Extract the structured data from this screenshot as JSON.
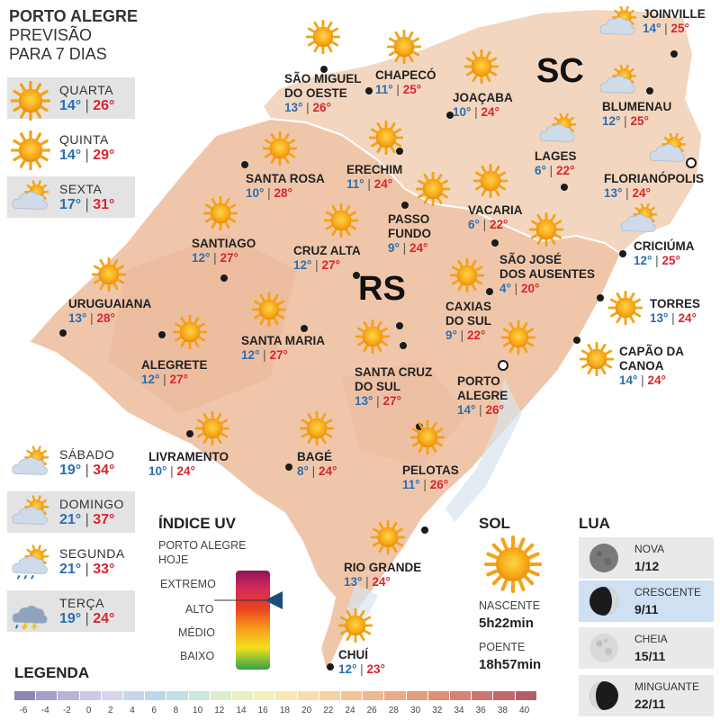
{
  "header": {
    "line1": "PORTO ALEGRE",
    "line2": "PREVISÃO",
    "line3": "PARA 7 DIAS"
  },
  "forecast": [
    {
      "day": "QUARTA",
      "min": "14°",
      "max": "26°",
      "icon": "sun-icon"
    },
    {
      "day": "QUINTA",
      "min": "14°",
      "max": "29°",
      "icon": "sun-icon"
    },
    {
      "day": "SEXTA",
      "min": "17°",
      "max": "31°",
      "icon": "partly-cloudy-icon"
    },
    {
      "day": "SÁBADO",
      "min": "19°",
      "max": "34°",
      "icon": "partly-cloudy-icon"
    },
    {
      "day": "DOMINGO",
      "min": "21°",
      "max": "37°",
      "icon": "partly-cloudy-icon"
    },
    {
      "day": "SEGUNDA",
      "min": "21°",
      "max": "33°",
      "icon": "sun-rain-icon"
    },
    {
      "day": "TERÇA",
      "min": "19°",
      "max": "24°",
      "icon": "storm-icon"
    }
  ],
  "states": {
    "sc": "SC",
    "rs": "RS"
  },
  "cities": [
    {
      "name": "SÃO MIGUEL",
      "name2": "DO OESTE",
      "min": "13°",
      "max": "26°",
      "icon": "sun-icon"
    },
    {
      "name": "CHAPECÓ",
      "min": "11°",
      "max": "25°",
      "icon": "sun-icon"
    },
    {
      "name": "JOAÇABA",
      "min": "10°",
      "max": "24°",
      "icon": "sun-icon"
    },
    {
      "name": "JOINVILLE",
      "min": "14°",
      "max": "25°",
      "icon": "partly-cloudy-icon"
    },
    {
      "name": "BLUMENAU",
      "min": "12°",
      "max": "25°",
      "icon": "partly-cloudy-icon"
    },
    {
      "name": "LAGES",
      "min": "6°",
      "max": "22°",
      "icon": "partly-cloudy-icon"
    },
    {
      "name": "FLORIANÓPOLIS",
      "min": "13°",
      "max": "24°",
      "icon": "partly-cloudy-icon"
    },
    {
      "name": "CRICIÚMA",
      "min": "12°",
      "max": "25°",
      "icon": "partly-cloudy-icon"
    },
    {
      "name": "SANTA ROSA",
      "min": "10°",
      "max": "28°",
      "icon": "sun-icon"
    },
    {
      "name": "ERECHIM",
      "min": "11°",
      "max": "24°",
      "icon": "sun-icon"
    },
    {
      "name": "VACARIA",
      "min": "6°",
      "max": "22°",
      "icon": "sun-icon"
    },
    {
      "name": "PASSO",
      "name2": "FUNDO",
      "min": "9°",
      "max": "24°",
      "icon": "sun-icon"
    },
    {
      "name": "SANTIAGO",
      "min": "12°",
      "max": "27°",
      "icon": "sun-icon"
    },
    {
      "name": "CRUZ ALTA",
      "min": "12°",
      "max": "27°",
      "icon": "sun-icon"
    },
    {
      "name": "SÃO JOSÉ",
      "name2": "DOS AUSENTES",
      "min": "4°",
      "max": "20°",
      "icon": "sun-icon"
    },
    {
      "name": "URUGUAIANA",
      "min": "13°",
      "max": "28°",
      "icon": "sun-icon"
    },
    {
      "name": "TORRES",
      "min": "13°",
      "max": "24°",
      "icon": "sun-icon"
    },
    {
      "name": "CAXIAS",
      "name2": "DO SUL",
      "min": "9°",
      "max": "22°",
      "icon": "sun-icon"
    },
    {
      "name": "SANTA MARIA",
      "min": "12°",
      "max": "27°",
      "icon": "sun-icon"
    },
    {
      "name": "ALEGRETE",
      "min": "12°",
      "max": "27°",
      "icon": "sun-icon"
    },
    {
      "name": "CAPÃO DA",
      "name2": "CANOA",
      "min": "14°",
      "max": "24°",
      "icon": "sun-icon"
    },
    {
      "name": "SANTA CRUZ",
      "name2": "DO SUL",
      "min": "13°",
      "max": "27°",
      "icon": "sun-icon"
    },
    {
      "name": "PORTO",
      "name2": "ALEGRE",
      "min": "14°",
      "max": "26°",
      "icon": "sun-icon"
    },
    {
      "name": "LIVRAMENTO",
      "min": "10°",
      "max": "24°",
      "icon": "sun-icon"
    },
    {
      "name": "BAGÉ",
      "min": "8°",
      "max": "24°",
      "icon": "sun-icon"
    },
    {
      "name": "PELOTAS",
      "min": "11°",
      "max": "26°",
      "icon": "sun-icon"
    },
    {
      "name": "RIO GRANDE",
      "min": "13°",
      "max": "24°",
      "icon": "sun-icon"
    },
    {
      "name": "CHUÍ",
      "min": "12°",
      "max": "23°",
      "icon": "sun-icon"
    }
  ],
  "uv": {
    "title": "ÍNDICE UV",
    "subtitle1": "PORTO ALEGRE",
    "subtitle2": "HOJE",
    "levels": [
      "EXTREMO",
      "ALTO",
      "MÉDIO",
      "BAIXO"
    ],
    "current_level": "ALTO",
    "current_fraction": 0.7,
    "colors": [
      "#b5176b",
      "#e23a2a",
      "#f6a21a",
      "#f4e21a",
      "#3aa84a"
    ]
  },
  "sun": {
    "title": "SOL",
    "sunrise_label": "NASCENTE",
    "sunrise": "5h22min",
    "sunset_label": "POENTE",
    "sunset": "18h57min"
  },
  "moon": {
    "title": "LUA",
    "phases": [
      {
        "name": "NOVA",
        "date": "1/12",
        "phase": "new"
      },
      {
        "name": "CRESCENTE",
        "date": "9/11",
        "phase": "waxing",
        "current": true
      },
      {
        "name": "CHEIA",
        "date": "15/11",
        "phase": "full"
      },
      {
        "name": "MINGUANTE",
        "date": "22/11",
        "phase": "waning"
      }
    ]
  },
  "legend": {
    "title": "LEGENDA",
    "ticks": [
      "-6",
      "-4",
      "-2",
      "0",
      "2",
      "4",
      "6",
      "8",
      "10",
      "12",
      "14",
      "16",
      "18",
      "20",
      "22",
      "24",
      "26",
      "28",
      "30",
      "32",
      "34",
      "36",
      "38",
      "40"
    ],
    "colors": [
      "#8f86b8",
      "#a49fca",
      "#b8b4d8",
      "#cbc9e4",
      "#d6d5ea",
      "#c9d6ea",
      "#bcd7e9",
      "#bfe0e6",
      "#cfe7da",
      "#dcedcd",
      "#e9f1c4",
      "#f3efbd",
      "#f8e6b5",
      "#f8dcae",
      "#f5d1a4",
      "#f2c49a",
      "#eeb891",
      "#e9ab88",
      "#e39e80",
      "#dc9079",
      "#d48374",
      "#cb7671",
      "#c1696e",
      "#b55d6b"
    ]
  },
  "colors": {
    "min": "#2a6fb0",
    "max": "#d6262f",
    "map_rs": "#f1c9ae",
    "map_sc": "#f3d5bf"
  }
}
